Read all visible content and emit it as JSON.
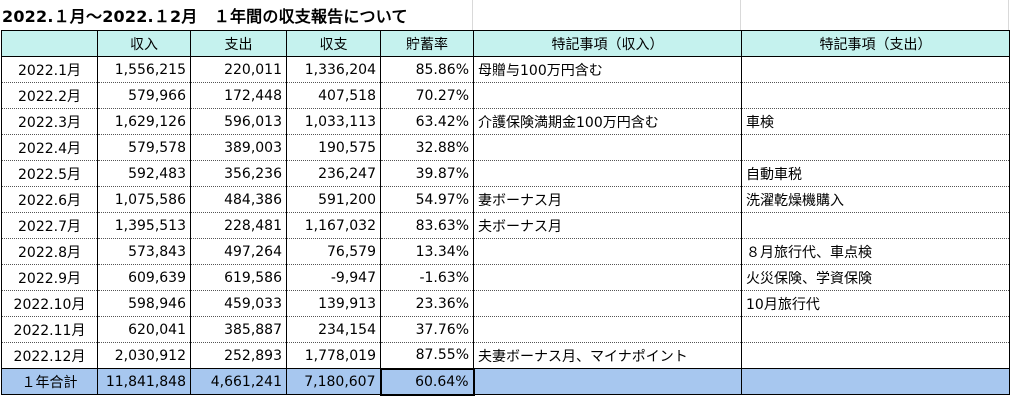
{
  "title": "2022.１月～2022.１2月　１年間の収支報告について",
  "headers": [
    "",
    "収入",
    "支出",
    "収支",
    "貯蓄率",
    "特記事項（収入）",
    "特記事項（支出）"
  ],
  "rows": [
    {
      "month": "2022.1月",
      "income": "1,556,215",
      "expense": "220,011",
      "balance": "1,336,204",
      "rate": "85.86%",
      "note_income": "母贈与100万円含む",
      "note_expense": ""
    },
    {
      "month": "2022.2月",
      "income": "579,966",
      "expense": "172,448",
      "balance": "407,518",
      "rate": "70.27%",
      "note_income": "",
      "note_expense": ""
    },
    {
      "month": "2022.3月",
      "income": "1,629,126",
      "expense": "596,013",
      "balance": "1,033,113",
      "rate": "63.42%",
      "note_income": "介護保険満期金100万円含む",
      "note_expense": "車検"
    },
    {
      "month": "2022.4月",
      "income": "579,578",
      "expense": "389,003",
      "balance": "190,575",
      "rate": "32.88%",
      "note_income": "",
      "note_expense": ""
    },
    {
      "month": "2022.5月",
      "income": "592,483",
      "expense": "356,236",
      "balance": "236,247",
      "rate": "39.87%",
      "note_income": "",
      "note_expense": "自動車税"
    },
    {
      "month": "2022.6月",
      "income": "1,075,586",
      "expense": "484,386",
      "balance": "591,200",
      "rate": "54.97%",
      "note_income": "妻ボーナス月",
      "note_expense": "洗濯乾燥機購入"
    },
    {
      "month": "2022.7月",
      "income": "1,395,513",
      "expense": "228,481",
      "balance": "1,167,032",
      "rate": "83.63%",
      "note_income": "夫ボーナス月",
      "note_expense": ""
    },
    {
      "month": "2022.8月",
      "income": "573,843",
      "expense": "497,264",
      "balance": "76,579",
      "rate": "13.34%",
      "note_income": "",
      "note_expense": "８月旅行代、車点検"
    },
    {
      "month": "2022.9月",
      "income": "609,639",
      "expense": "619,586",
      "balance": "-9,947",
      "rate": "-1.63%",
      "note_income": "",
      "note_expense": "火災保険、学資保険"
    },
    {
      "month": "2022.10月",
      "income": "598,946",
      "expense": "459,033",
      "balance": "139,913",
      "rate": "23.36%",
      "note_income": "",
      "note_expense": "10月旅行代"
    },
    {
      "month": "2022.11月",
      "income": "620,041",
      "expense": "385,887",
      "balance": "234,154",
      "rate": "37.76%",
      "note_income": "",
      "note_expense": ""
    },
    {
      "month": "2022.12月",
      "income": "2,030,912",
      "expense": "252,893",
      "balance": "1,778,019",
      "rate": "87.55%",
      "note_income": "夫妻ボーナス月、マイナポイント",
      "note_expense": ""
    }
  ],
  "total": {
    "month": "１年合計",
    "income": "11,841,848",
    "expense": "4,661,241",
    "balance": "7,180,607",
    "rate": "60.64%",
    "note_income": "",
    "note_expense": ""
  },
  "colors": {
    "header_bg": "#c5f2ee",
    "total_bg": "#a7c7ef"
  }
}
